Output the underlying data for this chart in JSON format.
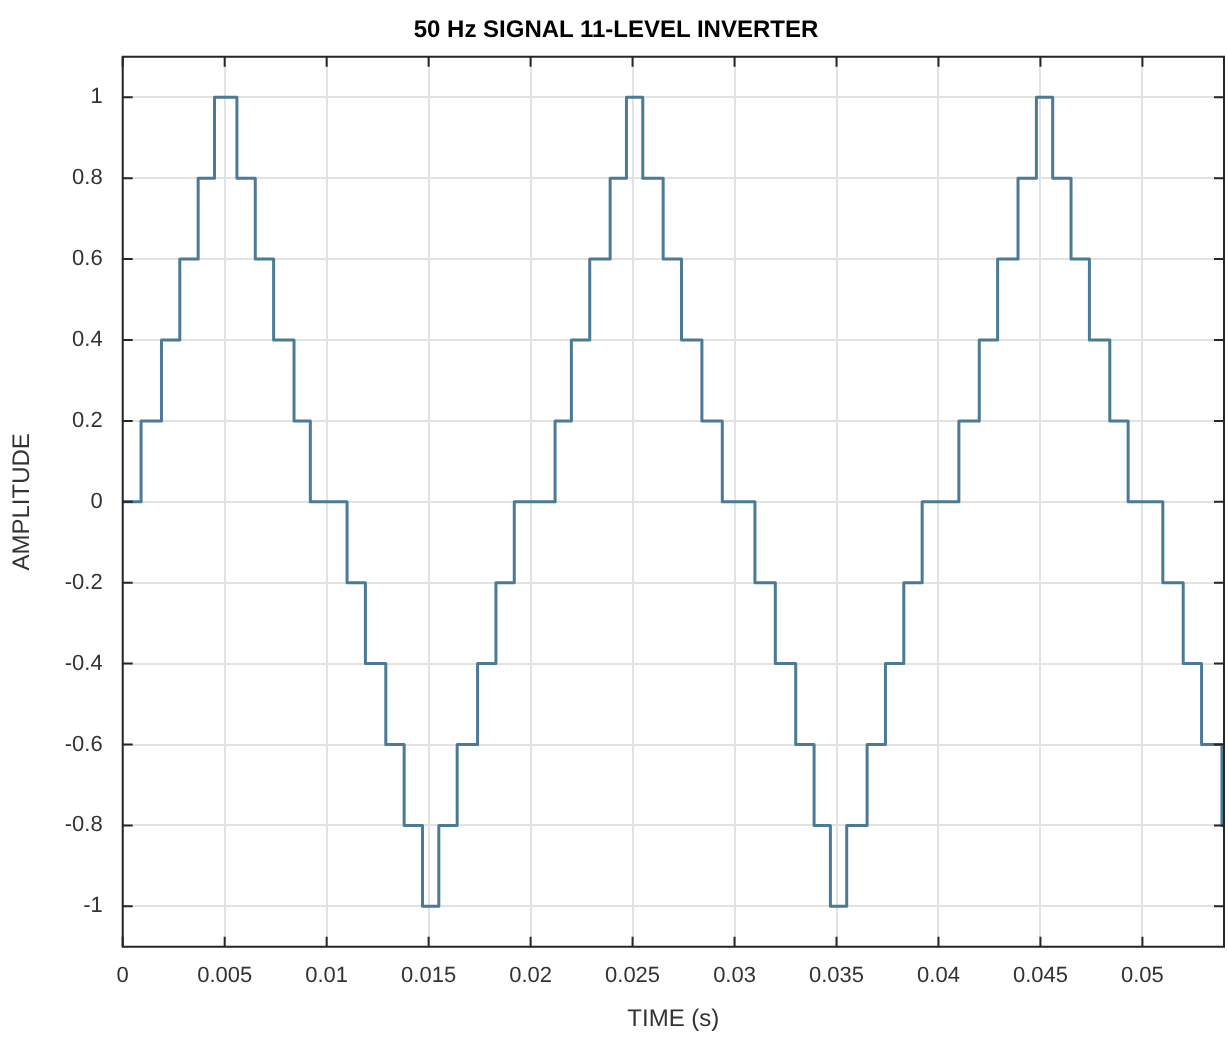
{
  "chart_data": {
    "type": "step",
    "title": "50 Hz SIGNAL 11-LEVEL INVERTER",
    "xlabel": "TIME (s)",
    "ylabel": "AMPLITUDE",
    "x": [
      0,
      0.0009,
      0.0019,
      0.0028,
      0.0037,
      0.0045,
      0.0056,
      0.0065,
      0.0074,
      0.0084,
      0.0092,
      0.011,
      0.0119,
      0.0129,
      0.0138,
      0.0147,
      0.0155,
      0.0164,
      0.0174,
      0.0183,
      0.0192,
      0.0212,
      0.022,
      0.0229,
      0.0239,
      0.0247,
      0.0255,
      0.0265,
      0.0274,
      0.0284,
      0.0294,
      0.031,
      0.032,
      0.033,
      0.0339,
      0.0347,
      0.0355,
      0.0365,
      0.0374,
      0.0383,
      0.0392,
      0.041,
      0.042,
      0.0429,
      0.0439,
      0.0448,
      0.0456,
      0.0465,
      0.0474,
      0.0484,
      0.0493,
      0.051,
      0.052,
      0.0529,
      0.0539,
      0.054
    ],
    "series": [
      {
        "color": "#4a7a96",
        "values": [
          0,
          0.2,
          0.4,
          0.6,
          0.8,
          1,
          0.8,
          0.6,
          0.4,
          0.2,
          0,
          -0.2,
          -0.4,
          -0.6,
          -0.8,
          -1,
          -0.8,
          -0.6,
          -0.4,
          -0.2,
          0,
          0.2,
          0.4,
          0.6,
          0.8,
          1,
          0.8,
          0.6,
          0.4,
          0.2,
          0,
          -0.2,
          -0.4,
          -0.6,
          -0.8,
          -1,
          -0.8,
          -0.6,
          -0.4,
          -0.2,
          0,
          0.2,
          0.4,
          0.6,
          0.8,
          1,
          0.8,
          0.6,
          0.4,
          0.2,
          0,
          -0.2,
          -0.4,
          -0.6,
          -0.8,
          -0.8
        ]
      }
    ],
    "xlim": [
      0,
      0.054
    ],
    "xticks": [
      0,
      0.005,
      0.01,
      0.015,
      0.02,
      0.025,
      0.03,
      0.035,
      0.04,
      0.045,
      0.05
    ],
    "ylim": [
      -1.1,
      1.1
    ],
    "yticks": [
      -1,
      -0.8,
      -0.6,
      -0.4,
      -0.2,
      0,
      0.2,
      0.4,
      0.6,
      0.8,
      1
    ],
    "grid": true,
    "legend": false,
    "marker": "none",
    "line_style": "solid"
  }
}
